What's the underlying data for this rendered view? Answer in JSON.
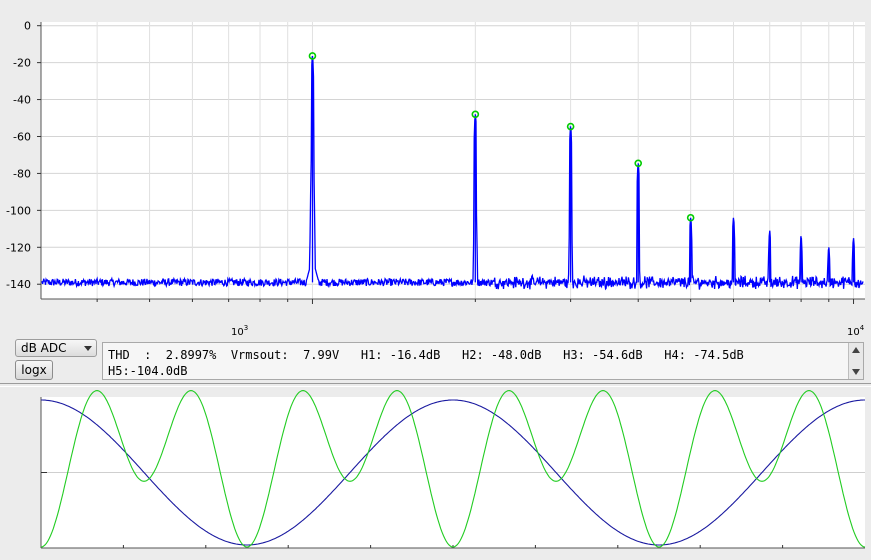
{
  "spectrum": {
    "y_ticks": [
      "0",
      "-20",
      "-40",
      "-60",
      "-80",
      "-100",
      "-120",
      "-140"
    ],
    "x_ticks": [
      {
        "base": "10",
        "exp": "3"
      },
      {
        "base": "10",
        "exp": "4"
      }
    ],
    "trace_color": "#0000ff",
    "marker_color": "#00cc00"
  },
  "controls": {
    "scale_select": "dB ADC",
    "logx_label": "logx"
  },
  "results": {
    "line1": "THD  :  2.8997%  Vrmsout:  7.99V   H1: -16.4dB   H2: -48.0dB   H3: -54.6dB   H4: -74.5dB",
    "line2": "H5:-104.0dB"
  },
  "waveform": {
    "colors": {
      "blue": "#1a1aa0",
      "green": "#22cc22"
    }
  },
  "chart_data": [
    {
      "type": "line",
      "x_scale": "log",
      "xlim": [
        315,
        10500
      ],
      "ylim": [
        -148,
        2
      ],
      "y_ticks": [
        0,
        -20,
        -40,
        -60,
        -80,
        -100,
        -120,
        -140
      ],
      "noise_floor": -139,
      "grid": true,
      "peaks": [
        {
          "x": 1000,
          "y": -16.4,
          "marker": true
        },
        {
          "x": 2000,
          "y": -48.0,
          "marker": true
        },
        {
          "x": 3000,
          "y": -54.6,
          "marker": true
        },
        {
          "x": 4000,
          "y": -74.5,
          "marker": true
        },
        {
          "x": 5000,
          "y": -104.0,
          "marker": true
        },
        {
          "x": 6000,
          "y": -104,
          "marker": false
        },
        {
          "x": 7000,
          "y": -111,
          "marker": false
        },
        {
          "x": 8000,
          "y": -114,
          "marker": false
        },
        {
          "x": 9000,
          "y": -120,
          "marker": false
        },
        {
          "x": 10000,
          "y": -115,
          "marker": false
        }
      ]
    },
    {
      "type": "line",
      "series": [
        {
          "color": "blue",
          "cycles": 2.0,
          "shape": "cosine"
        },
        {
          "color": "green",
          "cycles": 4.0,
          "shape": "distorted"
        }
      ],
      "grid": true
    }
  ]
}
